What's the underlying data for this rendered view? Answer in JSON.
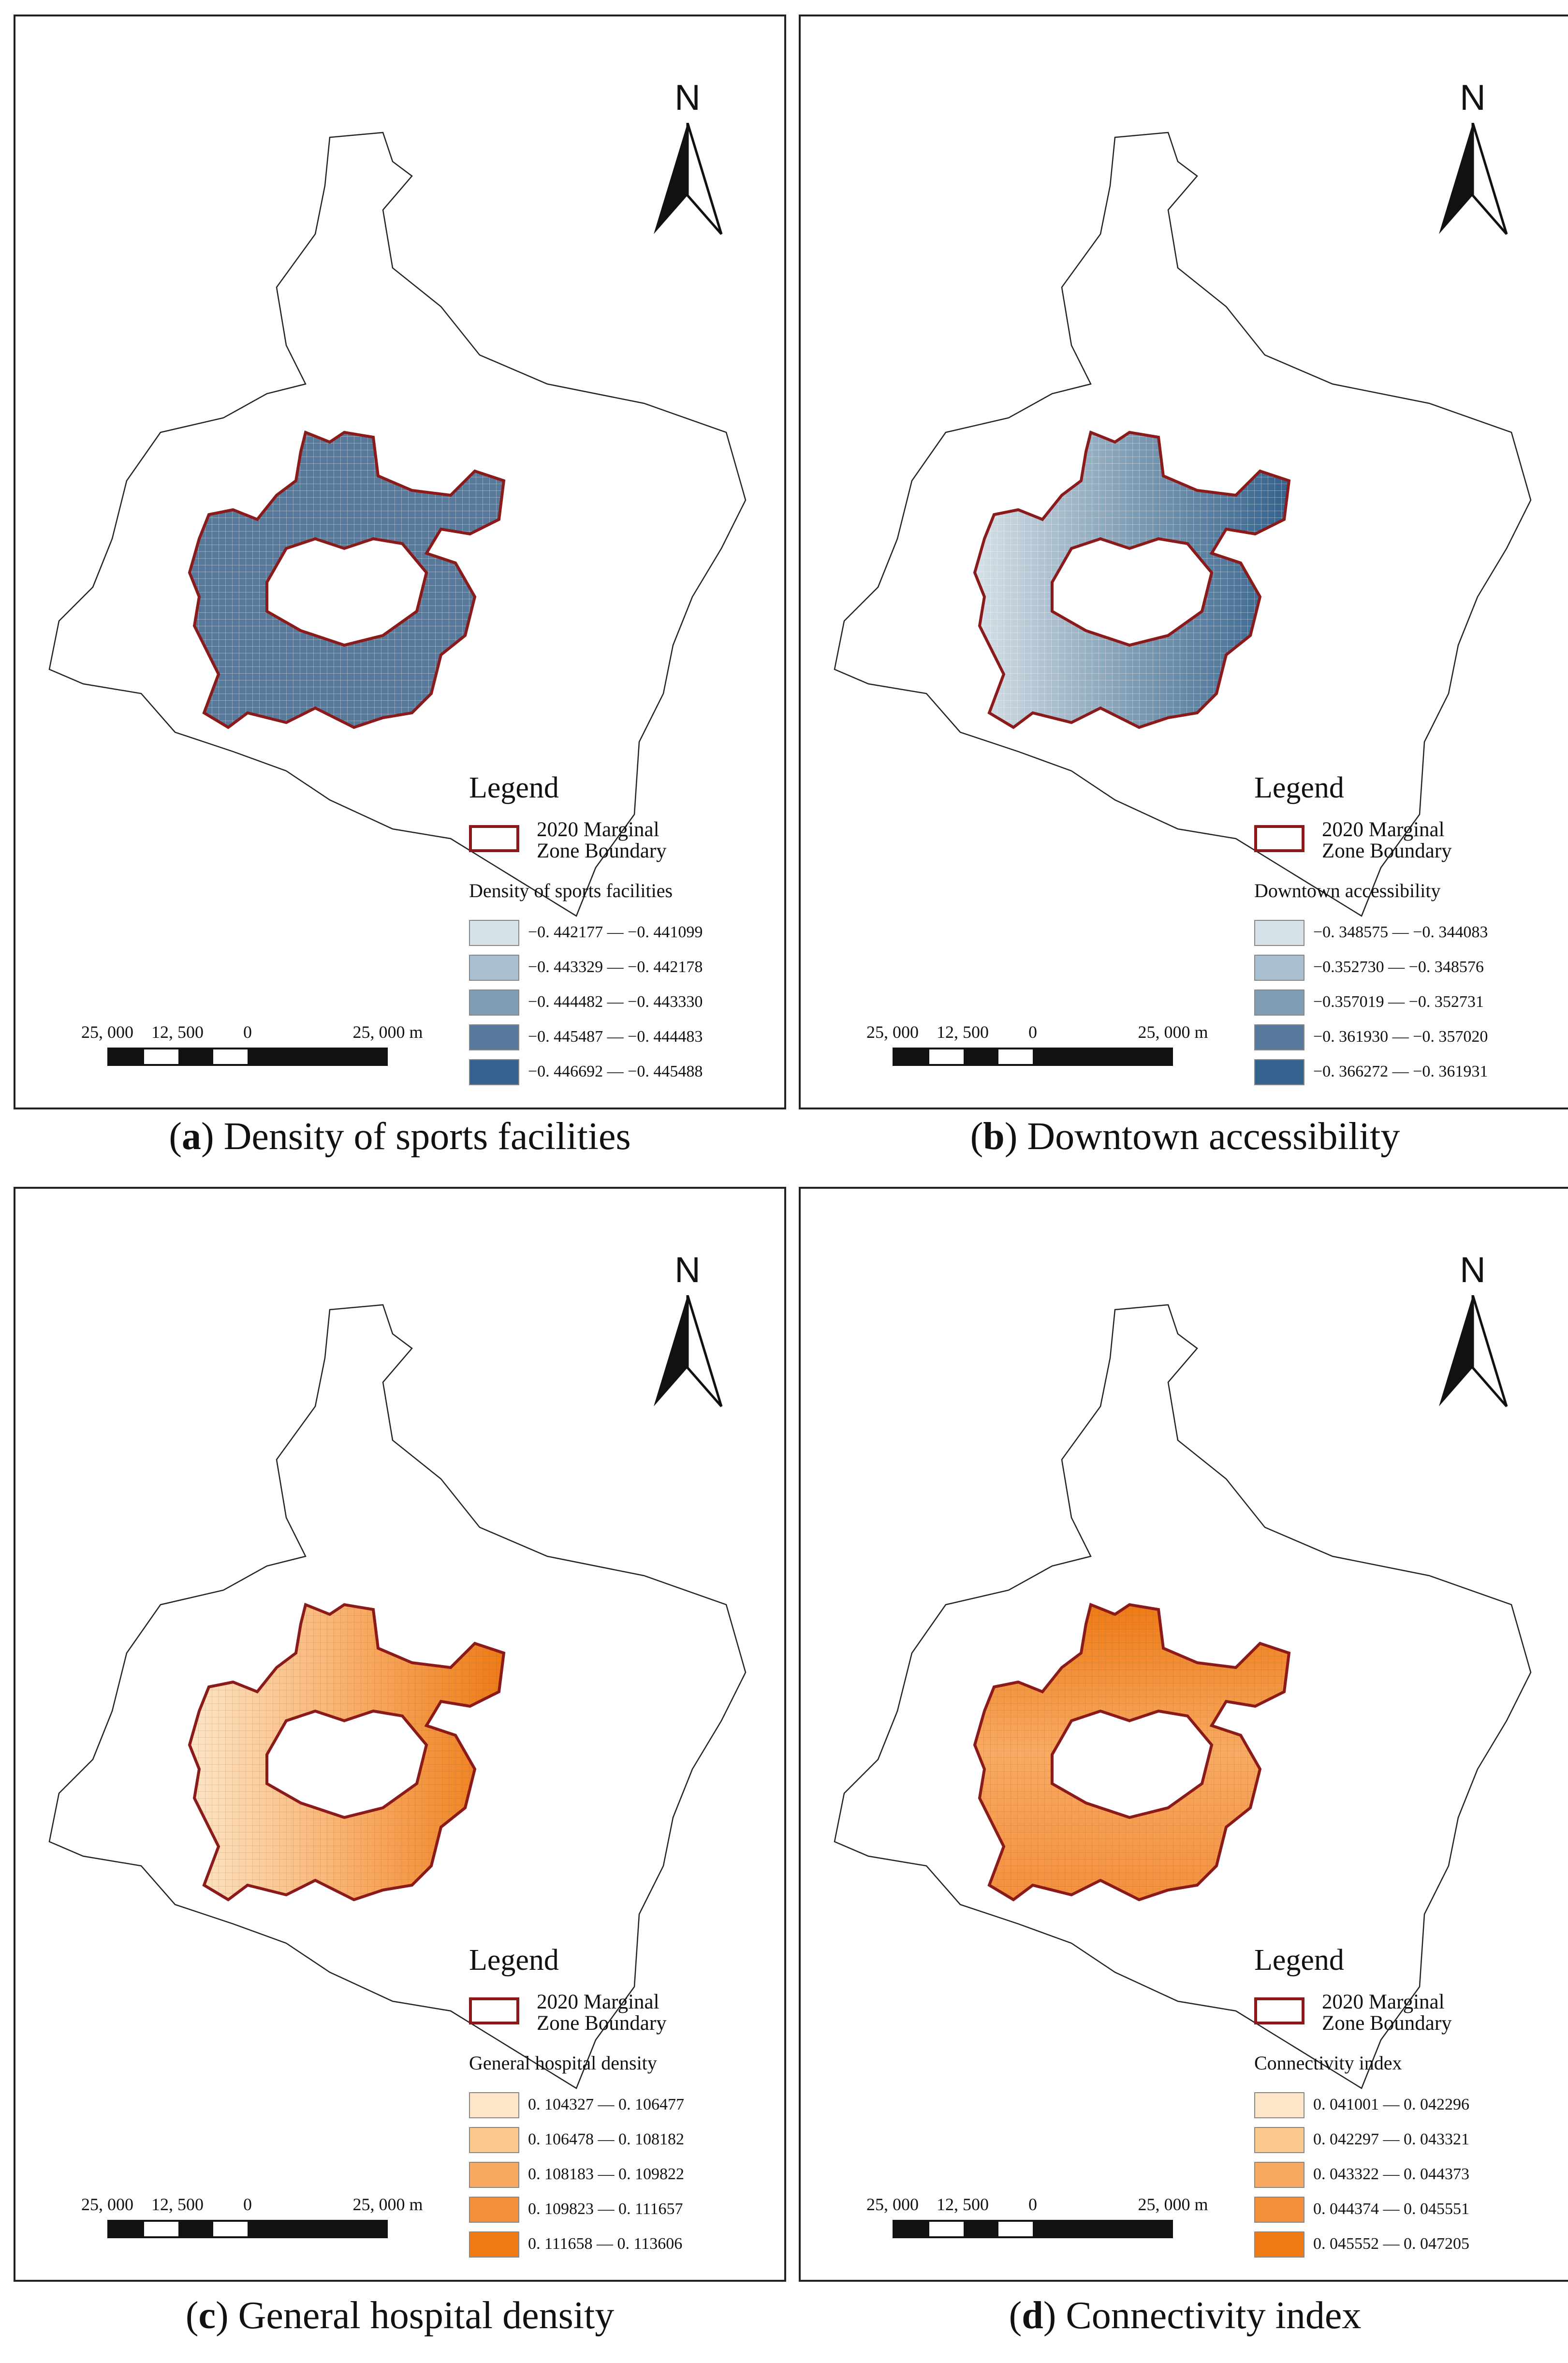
{
  "north_label": "N",
  "legend_title": "Legend",
  "boundary_label_line1": "2020 Marginal",
  "boundary_label_line2": "Zone Boundary",
  "scale": {
    "labels": [
      "25, 000",
      "12, 500",
      "0",
      "25, 000 m"
    ]
  },
  "colors": {
    "boundary": "#8b1a1a",
    "outline": "#222222",
    "blue_ramp": [
      "#d6e1e8",
      "#a8bfd0",
      "#7e9db5",
      "#57799b",
      "#33628e"
    ],
    "orange_ramp": [
      "#fde6c8",
      "#fbc890",
      "#f9aa62",
      "#f58f3c",
      "#ef7a14"
    ]
  },
  "panels": [
    {
      "letter": "a",
      "caption": "Density of sports facilities",
      "variable": "Density of sports facilities",
      "ramp": "blue",
      "classes": [
        "−0. 442177 — −0. 441099",
        "−0. 443329 — −0. 442178",
        "−0. 444482 — −0. 443330",
        "−0. 445487 — −0. 444483",
        "−0. 446692 — −0. 445488"
      ]
    },
    {
      "letter": "b",
      "caption": "Downtown accessibility",
      "variable": "Downtown accessibility",
      "ramp": "blue",
      "classes": [
        "−0. 348575 — −0. 344083",
        "−0.352730 — −0. 348576",
        "−0.357019 — −0. 352731",
        "−0. 361930 — −0. 357020",
        "−0. 366272 — −0. 361931"
      ]
    },
    {
      "letter": "c",
      "caption": "General hospital density",
      "variable": "General hospital density",
      "ramp": "orange",
      "classes": [
        "0. 104327 — 0. 106477",
        "0. 106478 — 0. 108182",
        "0. 108183 — 0. 109822",
        "0. 109823 — 0. 111657",
        "0. 111658 — 0. 113606"
      ]
    },
    {
      "letter": "d",
      "caption": "Connectivity index",
      "variable": "Connectivity index",
      "ramp": "orange",
      "classes": [
        "0. 041001 — 0. 042296",
        "0. 042297 — 0. 043321",
        "0. 043322 — 0. 044373",
        "0. 044374 — 0. 045551",
        "0. 045552 — 0. 047205"
      ]
    }
  ]
}
